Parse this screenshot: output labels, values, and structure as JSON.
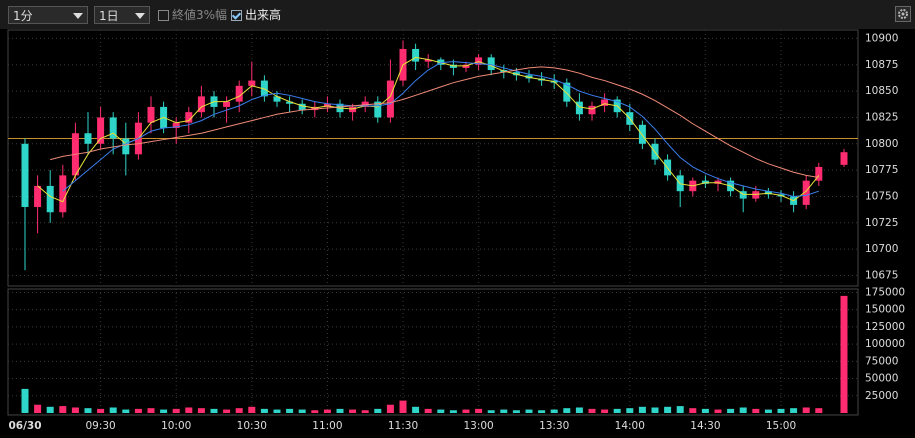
{
  "ui": {
    "interval": "1分",
    "period": "1日",
    "option_close_range": "終値3%幅",
    "option_volume": "出来高"
  },
  "chart_data": {
    "type": "candlestick",
    "categories": [
      "06/30",
      null,
      null,
      null,
      null,
      null,
      "09:30",
      null,
      null,
      null,
      null,
      null,
      "10:00",
      null,
      null,
      null,
      null,
      null,
      "10:30",
      null,
      null,
      null,
      null,
      null,
      "11:00",
      null,
      null,
      null,
      null,
      null,
      "11:30",
      null,
      null,
      null,
      null,
      null,
      "13:00",
      null,
      null,
      null,
      null,
      null,
      "13:30",
      null,
      null,
      null,
      null,
      null,
      "14:00",
      null,
      null,
      null,
      null,
      null,
      "14:30",
      null,
      null,
      null,
      null,
      null,
      "15:00",
      null,
      null,
      null,
      null,
      null
    ],
    "open": [
      10800,
      10740,
      10760,
      10735,
      10770,
      10810,
      10800,
      10825,
      10805,
      10790,
      10820,
      10835,
      10815,
      10820,
      10830,
      10845,
      10835,
      10840,
      10855,
      10860,
      10845,
      10840,
      10838,
      10832,
      10835,
      10838,
      10830,
      10835,
      10840,
      10825,
      10860,
      10890,
      10878,
      10880,
      10875,
      10872,
      10875,
      10882,
      10870,
      10868,
      10865,
      10862,
      10860,
      10858,
      10840,
      10828,
      10836,
      10842,
      10830,
      10818,
      10800,
      10785,
      10770,
      10755,
      10765,
      10762,
      10765,
      10755,
      10748,
      10755,
      10752,
      10750,
      10742,
      10765,
      null,
      10780
    ],
    "high": [
      10805,
      10770,
      10775,
      10780,
      10820,
      10830,
      10835,
      10830,
      10820,
      10830,
      10845,
      10840,
      10825,
      10835,
      10855,
      10850,
      10845,
      10860,
      10878,
      10865,
      10850,
      10845,
      10842,
      10840,
      10845,
      10842,
      10838,
      10845,
      10845,
      10880,
      10898,
      10895,
      10885,
      10882,
      10880,
      10878,
      10885,
      10885,
      10875,
      10872,
      10870,
      10868,
      10866,
      10862,
      10848,
      10840,
      10848,
      10845,
      10838,
      10822,
      10805,
      10790,
      10775,
      10768,
      10770,
      10768,
      10768,
      10760,
      10760,
      10758,
      10756,
      10755,
      10770,
      10782,
      null,
      10795
    ],
    "low": [
      10680,
      10715,
      10725,
      10730,
      10765,
      10790,
      10795,
      10790,
      10770,
      10785,
      10810,
      10810,
      10800,
      10810,
      10825,
      10825,
      10820,
      10830,
      10845,
      10840,
      10835,
      10830,
      10828,
      10825,
      10830,
      10825,
      10822,
      10830,
      10820,
      10820,
      10855,
      10870,
      10872,
      10870,
      10865,
      10868,
      10870,
      10865,
      10862,
      10860,
      10858,
      10855,
      10852,
      10835,
      10822,
      10822,
      10830,
      10825,
      10812,
      10795,
      10780,
      10765,
      10740,
      10750,
      10758,
      10755,
      10750,
      10735,
      10745,
      10748,
      10745,
      10735,
      10738,
      10760,
      null,
      10778
    ],
    "close": [
      10740,
      10760,
      10735,
      10770,
      10810,
      10800,
      10825,
      10805,
      10790,
      10820,
      10835,
      10815,
      10820,
      10830,
      10845,
      10835,
      10840,
      10855,
      10860,
      10845,
      10840,
      10838,
      10832,
      10835,
      10838,
      10830,
      10835,
      10840,
      10825,
      10860,
      10890,
      10878,
      10880,
      10875,
      10872,
      10875,
      10882,
      10870,
      10868,
      10865,
      10862,
      10860,
      10858,
      10840,
      10828,
      10836,
      10842,
      10830,
      10818,
      10800,
      10785,
      10770,
      10755,
      10765,
      10762,
      10765,
      10755,
      10748,
      10755,
      10752,
      10750,
      10742,
      10765,
      10778,
      null,
      10792
    ],
    "up_color": "#ff2d6f",
    "down_color": "#2fd5c8",
    "lines": [
      {
        "color": "#e8e23a",
        "values": [
          null,
          10760,
          10750,
          10745,
          10770,
          10790,
          10805,
          10810,
          10800,
          10805,
          10820,
          10825,
          10820,
          10822,
          10835,
          10840,
          10840,
          10845,
          10855,
          10852,
          10845,
          10840,
          10836,
          10834,
          10836,
          10834,
          10833,
          10836,
          10835,
          10845,
          10875,
          10882,
          10880,
          10877,
          10874,
          10874,
          10878,
          10874,
          10869,
          10866,
          10863,
          10861,
          10859,
          10848,
          10835,
          10833,
          10838,
          10836,
          10824,
          10808,
          10792,
          10777,
          10762,
          10760,
          10763,
          10763,
          10760,
          10752,
          10752,
          10753,
          10751,
          10746,
          10755,
          10770,
          null,
          10785
        ]
      },
      {
        "color": "#3a7ff0",
        "values": [
          null,
          null,
          null,
          10755,
          10765,
          10775,
          10785,
          10795,
          10800,
          10805,
          10812,
          10815,
          10816,
          10818,
          10822,
          10828,
          10832,
          10836,
          10842,
          10846,
          10848,
          10846,
          10843,
          10840,
          10838,
          10837,
          10836,
          10836,
          10836,
          10838,
          10848,
          10860,
          10870,
          10877,
          10878,
          10877,
          10876,
          10875,
          10872,
          10869,
          10866,
          10864,
          10861,
          10856,
          10850,
          10846,
          10843,
          10840,
          10835,
          10826,
          10814,
          10800,
          10787,
          10778,
          10772,
          10767,
          10763,
          10760,
          10757,
          10755,
          10753,
          10750,
          10751,
          10755,
          null,
          10760
        ]
      },
      {
        "color": "#f08a78",
        "values": [
          null,
          null,
          10785,
          10788,
          10790,
          10792,
          10795,
          10797,
          10799,
          10800,
          10802,
          10804,
          10806,
          10808,
          10810,
          10813,
          10816,
          10819,
          10822,
          10825,
          10828,
          10830,
          10832,
          10833,
          10834,
          10835,
          10836,
          10837,
          10838,
          10839,
          10842,
          10846,
          10850,
          10854,
          10858,
          10861,
          10864,
          10866,
          10868,
          10870,
          10872,
          10873,
          10872,
          10870,
          10867,
          10863,
          10860,
          10856,
          10852,
          10847,
          10841,
          10834,
          10827,
          10819,
          10812,
          10805,
          10798,
          10792,
          10786,
          10781,
          10777,
          10773,
          10770,
          10768,
          null,
          10776
        ]
      }
    ],
    "reference_line": {
      "value": 10805,
      "color": "#c8902a"
    },
    "ylim": [
      10665,
      10908
    ],
    "yticks": [
      10675,
      10700,
      10725,
      10750,
      10775,
      10800,
      10825,
      10850,
      10875,
      10900
    ],
    "grid": true,
    "volume": {
      "values": [
        35000,
        12000,
        9000,
        10000,
        8000,
        7000,
        6000,
        8000,
        5000,
        6000,
        7000,
        5000,
        6000,
        8000,
        7000,
        6000,
        5000,
        7000,
        9000,
        6000,
        5000,
        6000,
        5000,
        4000,
        5000,
        6000,
        5000,
        4000,
        6000,
        12000,
        18000,
        9000,
        6000,
        5000,
        4000,
        5000,
        6000,
        4000,
        5000,
        4000,
        5000,
        4000,
        5000,
        7000,
        8000,
        6000,
        5000,
        6000,
        7000,
        9000,
        8000,
        9000,
        10000,
        7000,
        6000,
        5000,
        6000,
        8000,
        6000,
        5000,
        6000,
        7000,
        8000,
        7000,
        null,
        170000
      ],
      "ylim": [
        0,
        180000
      ],
      "yticks": [
        25000,
        50000,
        75000,
        100000,
        125000,
        150000,
        175000
      ]
    }
  }
}
